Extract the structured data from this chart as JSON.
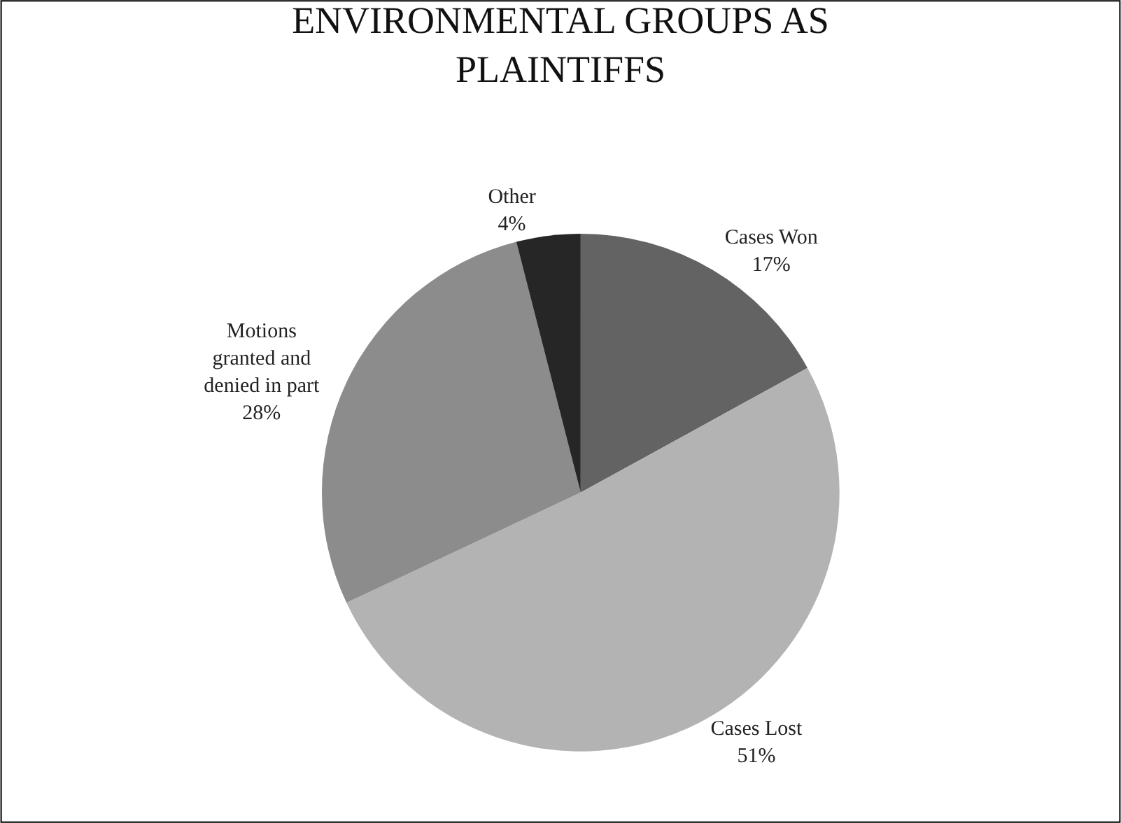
{
  "chart_data": {
    "type": "pie",
    "title": "ENVIRONMENTAL GROUPS AS PLAINTIFFS",
    "categories": [
      "Cases Won",
      "Cases Lost",
      "Motions granted and denied in part",
      "Other"
    ],
    "values": [
      17,
      51,
      28,
      4
    ],
    "value_labels": [
      "17%",
      "51%",
      "28%",
      "4%"
    ],
    "colors": [
      "#636363",
      "#b3b3b3",
      "#8c8c8c",
      "#262626"
    ],
    "legend": false
  }
}
